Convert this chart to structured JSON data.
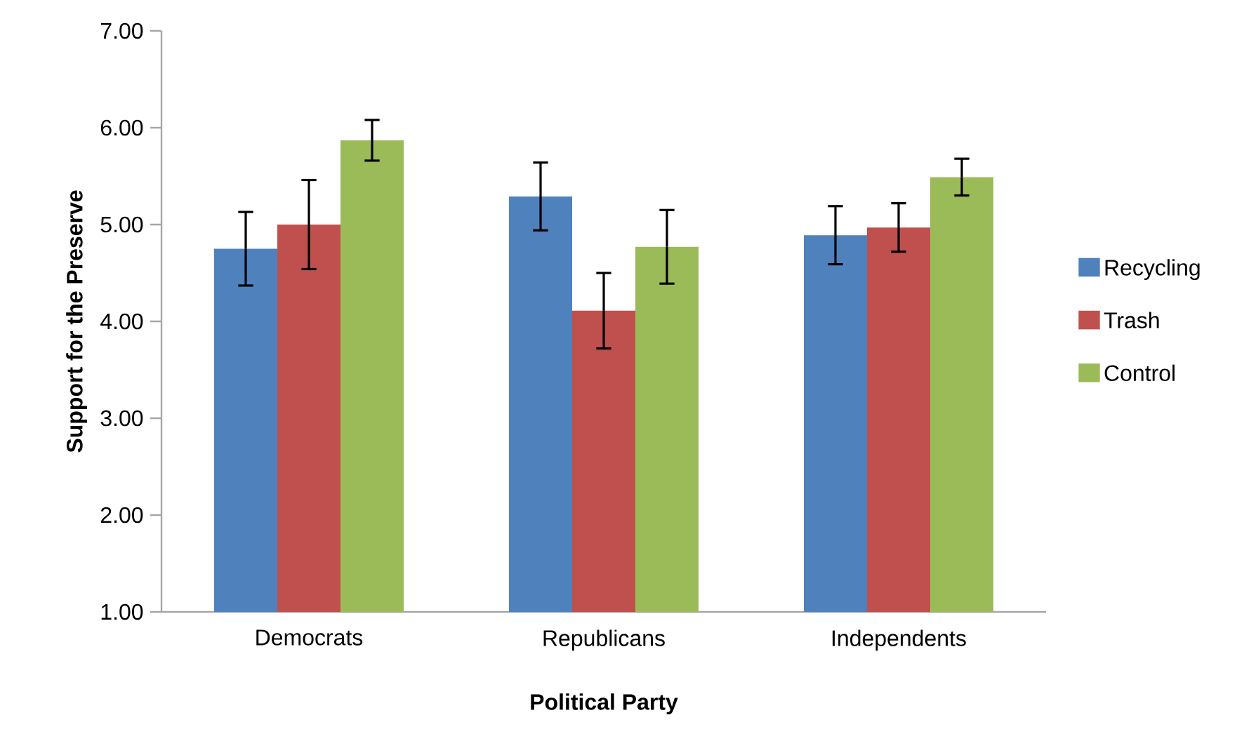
{
  "chart_data": {
    "type": "bar",
    "xlabel": "Political Party",
    "ylabel": "Support for the Preserve",
    "categories": [
      "Democrats",
      "Republicans",
      "Independents"
    ],
    "series": [
      {
        "name": "Recycling",
        "color": "#4f81bd",
        "values": [
          4.75,
          5.29,
          4.89
        ],
        "errors": [
          0.38,
          0.35,
          0.3
        ]
      },
      {
        "name": "Trash",
        "color": "#c0504d",
        "values": [
          5.0,
          4.11,
          4.97
        ],
        "errors": [
          0.46,
          0.39,
          0.25
        ]
      },
      {
        "name": "Control",
        "color": "#9bbb59",
        "values": [
          5.87,
          4.77,
          5.49
        ],
        "errors": [
          0.21,
          0.38,
          0.19
        ]
      }
    ],
    "ylim": [
      1,
      7
    ],
    "yticks": [
      {
        "value": 1,
        "label": "1.00"
      },
      {
        "value": 2,
        "label": "2.00"
      },
      {
        "value": 3,
        "label": "3.00"
      },
      {
        "value": 4,
        "label": "4.00"
      },
      {
        "value": 5,
        "label": "5.00"
      },
      {
        "value": 6,
        "label": "6.00"
      },
      {
        "value": 7,
        "label": "7.00"
      }
    ],
    "legend": "right"
  }
}
